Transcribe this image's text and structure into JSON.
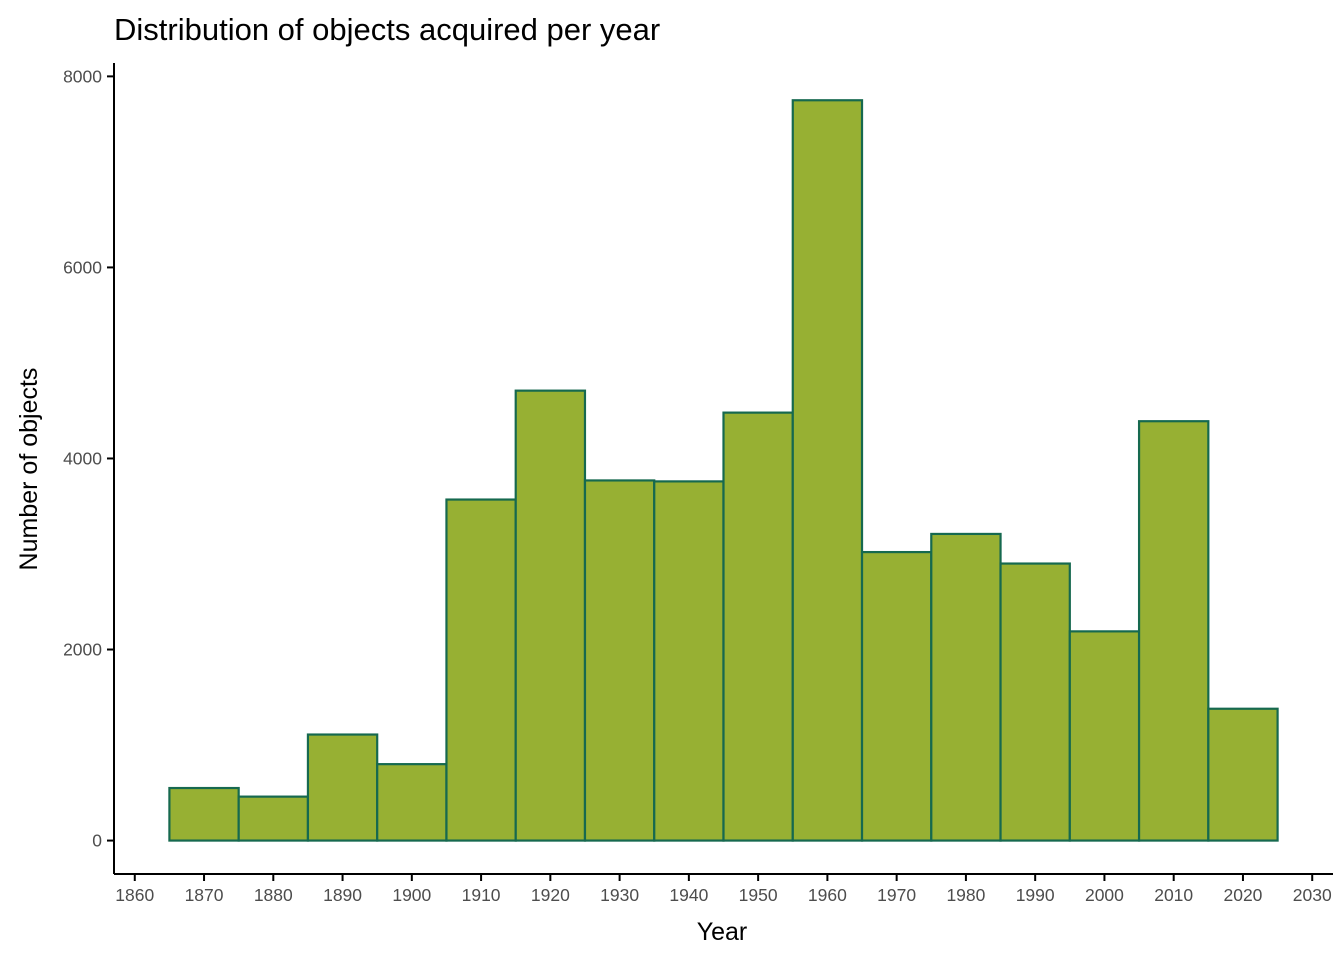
{
  "chart_data": {
    "type": "bar",
    "title": "Distribution of objects acquired per year",
    "xlabel": "Year",
    "ylabel": "Number of objects",
    "bin_width": 10,
    "bins": [
      {
        "start": 1865,
        "end": 1875,
        "count": 550
      },
      {
        "start": 1875,
        "end": 1885,
        "count": 460
      },
      {
        "start": 1885,
        "end": 1895,
        "count": 1110
      },
      {
        "start": 1895,
        "end": 1905,
        "count": 800
      },
      {
        "start": 1905,
        "end": 1915,
        "count": 3570
      },
      {
        "start": 1915,
        "end": 1925,
        "count": 4710
      },
      {
        "start": 1925,
        "end": 1935,
        "count": 3770
      },
      {
        "start": 1935,
        "end": 1945,
        "count": 3760
      },
      {
        "start": 1945,
        "end": 1955,
        "count": 4480
      },
      {
        "start": 1955,
        "end": 1965,
        "count": 7750
      },
      {
        "start": 1965,
        "end": 1975,
        "count": 3020
      },
      {
        "start": 1975,
        "end": 1985,
        "count": 3210
      },
      {
        "start": 1985,
        "end": 1995,
        "count": 2900
      },
      {
        "start": 1995,
        "end": 2005,
        "count": 2190
      },
      {
        "start": 2005,
        "end": 2015,
        "count": 4390
      },
      {
        "start": 2015,
        "end": 2025,
        "count": 1380
      }
    ],
    "x_ticks": [
      "1860",
      "1870",
      "1880",
      "1890",
      "1900",
      "1910",
      "1920",
      "1930",
      "1940",
      "1950",
      "1960",
      "1970",
      "1980",
      "1990",
      "2000",
      "2010",
      "2020",
      "2030"
    ],
    "y_ticks": [
      "0",
      "2000",
      "4000",
      "6000",
      "8000"
    ],
    "xlim": [
      1857,
      2033
    ],
    "ylim": [
      -350,
      8140
    ],
    "grid": false,
    "legend": "none",
    "colors": {
      "bar_fill": "#97B033",
      "bar_outline": "#16694F",
      "axis_line": "#000000",
      "tick_text": "#4D4D4D"
    }
  }
}
